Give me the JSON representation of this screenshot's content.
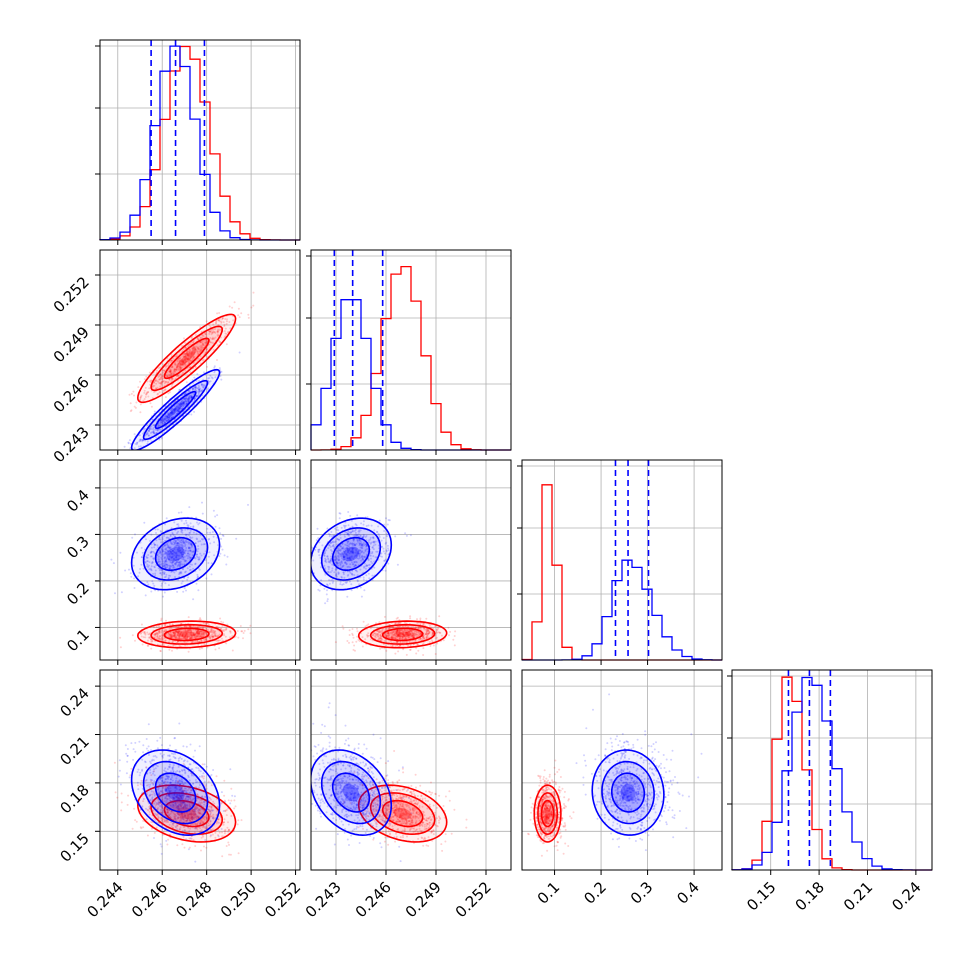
{
  "figure": {
    "type": "corner-plot",
    "colors": {
      "series_a": "#0000ff",
      "series_b": "#ff0000",
      "grid": "#b0b0b0",
      "frame": "#000000"
    }
  },
  "chart_data": {
    "type": "corner",
    "parameters": [
      {
        "range": [
          0.2432,
          0.2522
        ],
        "ticks": [
          0.244,
          0.246,
          0.248,
          0.25,
          0.252
        ],
        "tick_labels": [
          "0.244",
          "0.246",
          "0.248",
          "0.250",
          "0.252"
        ]
      },
      {
        "range": [
          0.2415,
          0.2535
        ],
        "ticks": [
          0.243,
          0.246,
          0.249,
          0.252
        ],
        "tick_labels": [
          "0.243",
          "0.246",
          "0.249",
          "0.252"
        ]
      },
      {
        "range": [
          0.03,
          0.46
        ],
        "ticks": [
          0.1,
          0.2,
          0.3,
          0.4
        ],
        "tick_labels": [
          "0.1",
          "0.2",
          "0.3",
          "0.4"
        ]
      },
      {
        "range": [
          0.126,
          0.25
        ],
        "ticks": [
          0.15,
          0.18,
          0.21,
          0.24
        ],
        "tick_labels": [
          "0.15",
          "0.18",
          "0.21",
          "0.24"
        ]
      }
    ],
    "series": [
      {
        "color": "#0000ff",
        "mean": [
          0.2466,
          0.2439,
          0.258,
          0.174
        ],
        "std": [
          0.0009,
          0.0011,
          0.035,
          0.012
        ],
        "corr": {
          "0-1": 0.93,
          "0-2": 0.25,
          "0-3": -0.3,
          "1-2": 0.25,
          "1-3": -0.3,
          "2-3": -0.05
        },
        "quantiles": [
          [
            0.2455,
            0.2466,
            0.2479
          ],
          [
            0.2429,
            0.244,
            0.2458
          ],
          [
            0.231,
            0.258,
            0.302
          ],
          [
            0.161,
            0.174,
            0.187
          ]
        ],
        "hist_peak_x": [
          0.2467,
          0.2441,
          0.26,
          0.175
        ]
      },
      {
        "color": "#ff0000",
        "mean": [
          0.2471,
          0.247,
          0.085,
          0.161
        ],
        "std": [
          0.001,
          0.0012,
          0.013,
          0.008
        ],
        "corr": {
          "0-1": 0.9,
          "0-2": 0.1,
          "0-3": -0.3,
          "1-2": 0.1,
          "1-3": -0.3,
          "2-3": 0.0
        },
        "hist_peak_x": [
          0.2472,
          0.2468,
          0.082,
          0.16
        ]
      }
    ],
    "grid": true
  }
}
